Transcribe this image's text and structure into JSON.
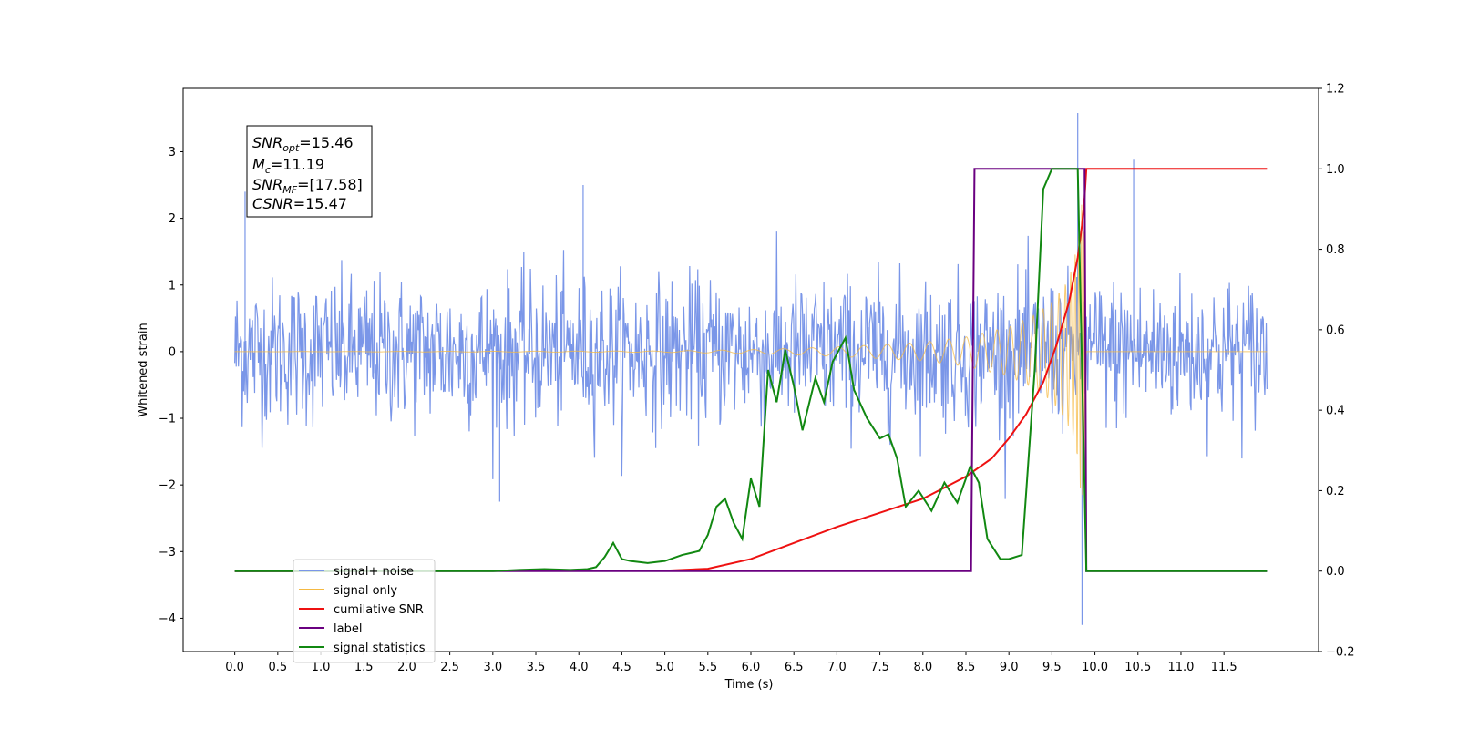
{
  "chart_data": {
    "type": "line",
    "xlabel": "Time (s)",
    "ylabel": "Whitened strain",
    "xlim": [
      -0.6,
      12.6
    ],
    "ylim": [
      -4.5,
      3.95
    ],
    "ylim_right": [
      -0.2,
      1.2
    ],
    "x_ticks": [
      0.0,
      0.5,
      1.0,
      1.5,
      2.0,
      2.5,
      3.0,
      3.5,
      4.0,
      4.5,
      5.0,
      5.5,
      6.0,
      6.5,
      7.0,
      7.5,
      8.0,
      8.5,
      9.0,
      9.5,
      10.0,
      10.5,
      11.0,
      11.5
    ],
    "x_tick_labels": [
      "0.0",
      "0.5",
      "1.0",
      "1.5",
      "2.0",
      "2.5",
      "3.0",
      "3.5",
      "4.0",
      "4.5",
      "5.0",
      "5.5",
      "6.0",
      "6.5",
      "7.0",
      "7.5",
      "8.0",
      "8.5",
      "9.0",
      "9.5",
      "10.0",
      "10.5",
      "11.0",
      "11.5"
    ],
    "y_ticks": [
      -4,
      -3,
      -2,
      -1,
      0,
      1,
      2,
      3
    ],
    "y_tick_labels": [
      "−4",
      "−3",
      "−2",
      "−1",
      "0",
      "1",
      "2",
      "3"
    ],
    "y_right_ticks": [
      -0.2,
      0.0,
      0.2,
      0.4,
      0.6,
      0.8,
      1.0,
      1.2
    ],
    "y_right_tick_labels": [
      "−0.2",
      "0.0",
      "0.2",
      "0.4",
      "0.6",
      "0.8",
      "1.0",
      "1.2"
    ],
    "legend_placement": "lower-left",
    "grid": false,
    "annotation": {
      "lines": [
        {
          "main": "SNR",
          "sub": "opt",
          "rest": "=15.46"
        },
        {
          "main": "M",
          "sub": "c",
          "rest": "=11.19"
        },
        {
          "main": "SNR",
          "sub": "MF",
          "rest": "=[17.58]"
        },
        {
          "main": "CSNR",
          "sub": "",
          "rest": "=15.47"
        }
      ]
    },
    "series": [
      {
        "name": "signal+ noise",
        "color": "#7a96e8",
        "axis": "left",
        "kind": "noise",
        "x_range": [
          0.0,
          12.0
        ],
        "amplitude_sigma": 0.55,
        "notable_points": [
          [
            0.12,
            2.4
          ],
          [
            4.05,
            2.5
          ],
          [
            9.8,
            3.58
          ],
          [
            9.85,
            -4.1
          ],
          [
            10.45,
            2.88
          ],
          [
            3.08,
            -2.25
          ]
        ]
      },
      {
        "name": "signal only",
        "color": "#f5b942",
        "axis": "left",
        "kind": "chirp",
        "envelope": [
          [
            0.0,
            0.0
          ],
          [
            5.0,
            0.01
          ],
          [
            6.0,
            0.03
          ],
          [
            7.0,
            0.07
          ],
          [
            8.0,
            0.14
          ],
          [
            8.5,
            0.22
          ],
          [
            9.0,
            0.37
          ],
          [
            9.3,
            0.55
          ],
          [
            9.5,
            0.75
          ],
          [
            9.65,
            1.0
          ],
          [
            9.75,
            1.3
          ],
          [
            9.8,
            1.7
          ],
          [
            9.84,
            2.2
          ],
          [
            9.87,
            2.6
          ],
          [
            9.9,
            0.0
          ],
          [
            12.0,
            0.0
          ]
        ]
      },
      {
        "name": "cumilative SNR",
        "color": "#ee1111",
        "axis": "right",
        "points": [
          [
            0.0,
            0.0
          ],
          [
            5.0,
            0.001
          ],
          [
            5.5,
            0.006
          ],
          [
            6.0,
            0.03
          ],
          [
            6.5,
            0.07
          ],
          [
            7.0,
            0.11
          ],
          [
            7.5,
            0.145
          ],
          [
            8.0,
            0.18
          ],
          [
            8.5,
            0.235
          ],
          [
            8.8,
            0.28
          ],
          [
            9.0,
            0.33
          ],
          [
            9.2,
            0.39
          ],
          [
            9.4,
            0.47
          ],
          [
            9.55,
            0.56
          ],
          [
            9.7,
            0.67
          ],
          [
            9.8,
            0.78
          ],
          [
            9.85,
            0.86
          ],
          [
            9.88,
            0.93
          ],
          [
            9.9,
            1.0
          ],
          [
            12.0,
            1.0
          ]
        ]
      },
      {
        "name": "label",
        "color": "#6a0080",
        "axis": "right",
        "points": [
          [
            0.0,
            0.0
          ],
          [
            8.56,
            0.0
          ],
          [
            8.6,
            1.0
          ],
          [
            9.88,
            1.0
          ],
          [
            9.9,
            0.0
          ],
          [
            12.0,
            0.0
          ]
        ]
      },
      {
        "name": "signal statistics",
        "color": "#118811",
        "axis": "right",
        "points": [
          [
            0.0,
            0.0
          ],
          [
            2.0,
            0.0
          ],
          [
            3.0,
            0.0
          ],
          [
            3.3,
            0.003
          ],
          [
            3.6,
            0.005
          ],
          [
            3.9,
            0.003
          ],
          [
            4.1,
            0.005
          ],
          [
            4.2,
            0.01
          ],
          [
            4.3,
            0.035
          ],
          [
            4.4,
            0.07
          ],
          [
            4.5,
            0.03
          ],
          [
            4.6,
            0.025
          ],
          [
            4.8,
            0.02
          ],
          [
            5.0,
            0.025
          ],
          [
            5.2,
            0.04
          ],
          [
            5.4,
            0.05
          ],
          [
            5.5,
            0.09
          ],
          [
            5.6,
            0.16
          ],
          [
            5.7,
            0.18
          ],
          [
            5.8,
            0.12
          ],
          [
            5.9,
            0.08
          ],
          [
            6.0,
            0.23
          ],
          [
            6.1,
            0.16
          ],
          [
            6.2,
            0.5
          ],
          [
            6.3,
            0.42
          ],
          [
            6.4,
            0.55
          ],
          [
            6.5,
            0.46
          ],
          [
            6.6,
            0.35
          ],
          [
            6.75,
            0.48
          ],
          [
            6.85,
            0.42
          ],
          [
            6.95,
            0.52
          ],
          [
            7.1,
            0.58
          ],
          [
            7.2,
            0.45
          ],
          [
            7.35,
            0.38
          ],
          [
            7.5,
            0.33
          ],
          [
            7.6,
            0.34
          ],
          [
            7.7,
            0.28
          ],
          [
            7.8,
            0.16
          ],
          [
            7.95,
            0.2
          ],
          [
            8.1,
            0.15
          ],
          [
            8.25,
            0.22
          ],
          [
            8.4,
            0.17
          ],
          [
            8.55,
            0.26
          ],
          [
            8.65,
            0.22
          ],
          [
            8.75,
            0.08
          ],
          [
            8.9,
            0.03
          ],
          [
            9.0,
            0.03
          ],
          [
            9.15,
            0.04
          ],
          [
            9.3,
            0.5
          ],
          [
            9.4,
            0.95
          ],
          [
            9.5,
            1.0
          ],
          [
            9.8,
            1.0
          ],
          [
            9.85,
            0.5
          ],
          [
            9.9,
            0.0
          ],
          [
            11.0,
            0.0
          ],
          [
            12.0,
            0.0
          ]
        ]
      }
    ]
  }
}
